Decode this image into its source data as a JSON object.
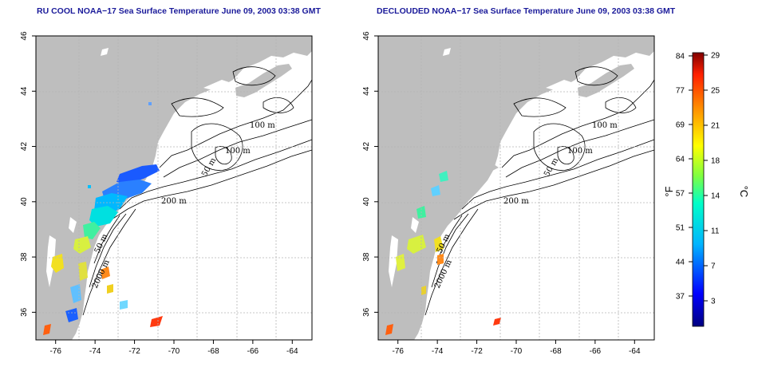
{
  "titles": {
    "left": "RU COOL NOAA−17 Sea Surface Temperature June 09, 2003 03:38 GMT",
    "right": "DECLOUDED NOAA−17 Sea Surface Temperature June 09, 2003 03:38 GMT"
  },
  "axes": {
    "lon_ticks": [
      "-76",
      "-74",
      "-72",
      "-70",
      "-68",
      "-66",
      "-64"
    ],
    "lat_ticks": [
      "36",
      "38",
      "40",
      "42",
      "44",
      "46"
    ],
    "lon_range": [
      -77.0,
      -63.0
    ],
    "lat_range": [
      35.0,
      46.0
    ],
    "grid": "dotted"
  },
  "contour_labels": {
    "left": [
      "100 m",
      "100 m",
      "50 m",
      "200 m",
      "50 m",
      "2000 m"
    ],
    "right": [
      "100 m",
      "100 m",
      "50 m",
      "200 m",
      "50 m",
      "2000 m"
    ]
  },
  "colorbar": {
    "fahrenheit_ticks": [
      "84",
      "77",
      "69",
      "64",
      "57",
      "51",
      "44",
      "37"
    ],
    "celsius_ticks": [
      "29",
      "25",
      "21",
      "18",
      "14",
      "11",
      "7",
      "3"
    ],
    "f_unit": "°F",
    "c_unit": "°C"
  },
  "colors": {
    "land": "#bebebe",
    "title": "#1a1a9a",
    "grid": "#b5b5b5"
  }
}
